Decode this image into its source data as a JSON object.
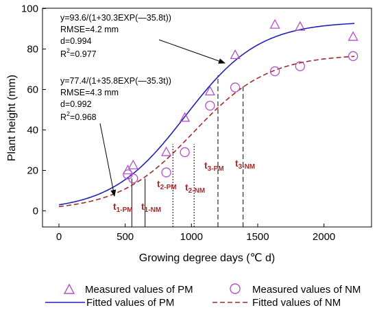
{
  "chart_data": {
    "type": "scatter",
    "xlabel": "Growing degree days (℃ d)",
    "ylabel": "Plant height (mm)",
    "xlim": [
      -100,
      2300
    ],
    "ylim": [
      -5,
      100
    ],
    "xticks": [
      0,
      500,
      1000,
      1500,
      2000
    ],
    "yticks": [
      0,
      20,
      40,
      60,
      80,
      100
    ],
    "grid": false,
    "legend_position": "bottom",
    "series": [
      {
        "name": "Measured values of PM",
        "marker": "triangle",
        "color": "#b24fc8",
        "x": [
          520,
          560,
          810,
          950,
          1140,
          1330,
          1630,
          1820,
          2220
        ],
        "y": [
          20,
          22.5,
          29,
          46,
          59,
          77,
          92,
          91,
          86
        ]
      },
      {
        "name": "Measured values of NM",
        "marker": "circle",
        "color": "#b24fc8",
        "x": [
          520,
          560,
          810,
          950,
          1140,
          1330,
          1630,
          1820,
          2220
        ],
        "y": [
          18,
          16,
          19,
          29,
          52,
          61,
          69,
          71.5,
          76.5
        ]
      },
      {
        "name": "Fitted values of PM",
        "style": "solid",
        "color": "#1f1fb4",
        "equation": {
          "a": 93.6,
          "b": 30.3,
          "c": 35.8,
          "scale": 1000
        },
        "x_range": [
          0,
          2230
        ]
      },
      {
        "name": "Fitted values of NM",
        "style": "dashed",
        "color": "#a0282c",
        "equation": {
          "a": 77.4,
          "b": 35.8,
          "c": 35.3,
          "scale": 1000
        },
        "x_range": [
          0,
          2230
        ]
      }
    ],
    "equations": {
      "pm": {
        "formula": "y=93.6/(1+30.3EXP(—35.8t))",
        "rmse": "RMSE=4.2 mm",
        "d": "d=0.994",
        "r2_lead": "R",
        "r2_sup": "2",
        "r2_value": "=0.977"
      },
      "nm": {
        "formula": "y=77.4/(1+35.8EXP(—35.3t))",
        "rmse": "RMSE=4.3 mm",
        "d": "d=0.992",
        "r2_lead": "R",
        "r2_sup": "2",
        "r2_value": "=0.968"
      }
    },
    "stage_markers": [
      {
        "id": "t1-pm",
        "main": "t",
        "sub": "1-PM",
        "x": 550,
        "style": "solid",
        "y_top": 16
      },
      {
        "id": "t1-nm",
        "main": "t",
        "sub": "1-NM",
        "x": 650,
        "style": "solid",
        "y_top": 16
      },
      {
        "id": "t2-pm",
        "main": "t",
        "sub": "2-PM",
        "x": 860,
        "style": "dotted",
        "y_top": 33
      },
      {
        "id": "t2-nm",
        "main": "t",
        "sub": "2-NM",
        "x": 1020,
        "style": "dotted",
        "y_top": 33
      },
      {
        "id": "t3-pm",
        "main": "t",
        "sub": "3-PM",
        "x": 1200,
        "style": "dashed",
        "y_top": 67
      },
      {
        "id": "t3-nm",
        "main": "t",
        "sub": "3-NM",
        "x": 1390,
        "style": "dashed",
        "y_top": 62
      }
    ]
  },
  "legend": {
    "pm_measured": "Measured values of PM",
    "nm_measured": "Measured values of NM",
    "pm_fitted": "Fitted values of PM",
    "nm_fitted": "Fitted values of NM"
  }
}
